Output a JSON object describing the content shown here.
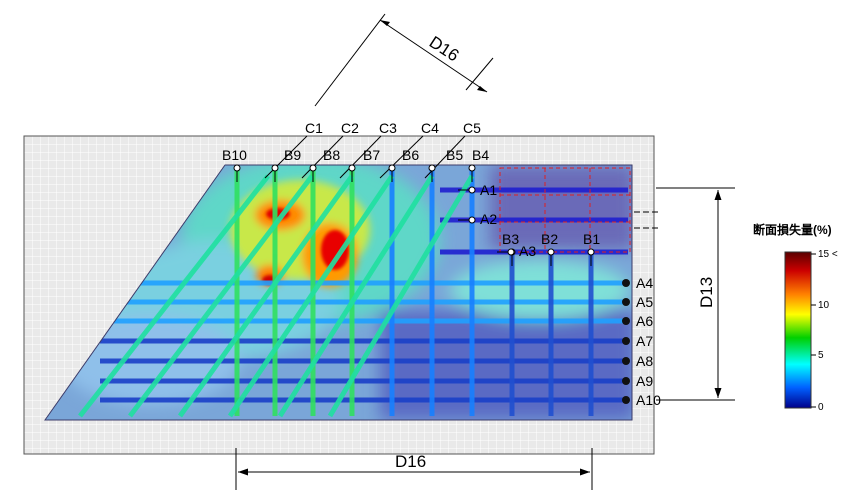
{
  "bars": {
    "c_labels": [
      "C1",
      "C2",
      "C3",
      "C4",
      "C5"
    ],
    "b_labels": [
      "B10",
      "B9",
      "B8",
      "B7",
      "B6",
      "B5",
      "B4",
      "B3",
      "B2",
      "B1"
    ],
    "a_labels": [
      "A1",
      "A2",
      "A3",
      "A4",
      "A5",
      "A6",
      "A7",
      "A8",
      "A9",
      "A10"
    ]
  },
  "dimensions": {
    "diagonal": "D16",
    "vertical": "D13",
    "horizontal": "D16"
  },
  "colorbar": {
    "title": "断面損失量(%)",
    "ticks": [
      "15 <",
      "10",
      "5",
      "0"
    ],
    "stops": [
      "#5a0000",
      "#cc0000",
      "#ff7f00",
      "#ffff00",
      "#00d000",
      "#00ffff",
      "#0060ff",
      "#00008a"
    ]
  }
}
